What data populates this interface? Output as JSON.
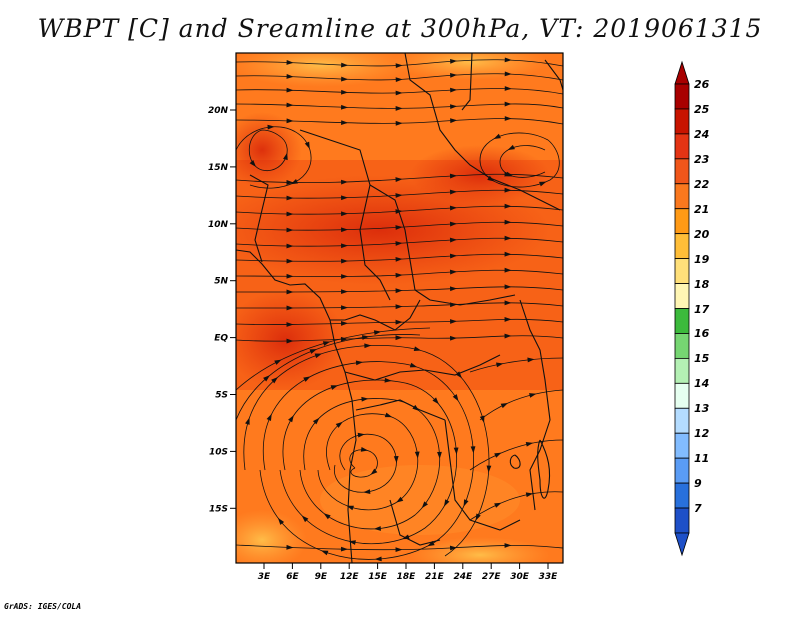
{
  "title": "WBPT [C] and Sreamline at 300hPa, VT: 2019061315",
  "credit": "GrADS: IGES/COLA",
  "map": {
    "lat_ticks": [
      "20N",
      "15N",
      "10N",
      "5N",
      "EQ",
      "5S",
      "10S",
      "15S"
    ],
    "lon_ticks": [
      "3E",
      "6E",
      "9E",
      "12E",
      "15E",
      "18E",
      "21E",
      "24E",
      "27E",
      "30E",
      "33E"
    ],
    "field_colors": {
      "bg": "#ff7a1e",
      "core": "#f04e12",
      "deep": "#e0300c",
      "light": "#ffa23a",
      "pale": "#ffcf5a"
    },
    "line_color": "#111111"
  },
  "colorbar": {
    "labels": [
      "26",
      "25",
      "24",
      "23",
      "22",
      "21",
      "20",
      "19",
      "18",
      "17",
      "16",
      "15",
      "14",
      "13",
      "12",
      "11",
      "9",
      "7"
    ],
    "colors": [
      "#a80000",
      "#c81400",
      "#e43414",
      "#f0561a",
      "#fa781e",
      "#ff9a16",
      "#ffbe38",
      "#ffe07a",
      "#fff6b4",
      "#3cba3c",
      "#76d672",
      "#b4f0b4",
      "#e6fff0",
      "#b4dcff",
      "#82bcff",
      "#5a9cf5",
      "#2870dc",
      "#1e50c8"
    ]
  }
}
